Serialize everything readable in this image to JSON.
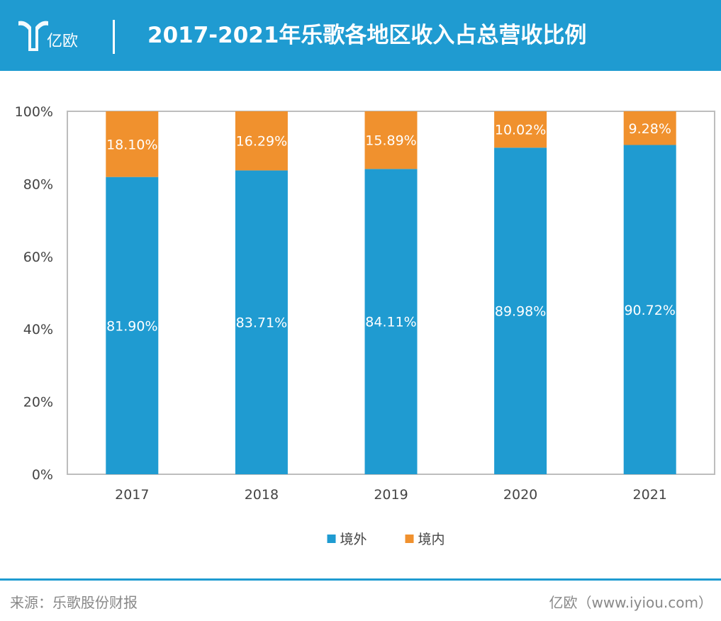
{
  "header": {
    "logo_text": "亿欧",
    "title": "2017-2021年乐歌各地区收入占总营收比例"
  },
  "colors": {
    "brand": "#1f9bd1",
    "overseas": "#1f9bd1",
    "domestic": "#f0912e"
  },
  "chart_data": {
    "type": "bar",
    "stacked": true,
    "title": "2017-2021年乐歌各地区收入占总营收比例",
    "categories": [
      "2017",
      "2018",
      "2019",
      "2020",
      "2021"
    ],
    "series": [
      {
        "name": "境外",
        "values": [
          81.9,
          83.71,
          84.11,
          89.98,
          90.72
        ],
        "labels": [
          "81.90%",
          "83.71%",
          "84.11%",
          "89.98%",
          "90.72%"
        ],
        "color": "#1f9bd1"
      },
      {
        "name": "境内",
        "values": [
          18.1,
          16.29,
          15.89,
          10.02,
          9.28
        ],
        "labels": [
          "18.10%",
          "16.29%",
          "15.89%",
          "10.02%",
          "9.28%"
        ],
        "color": "#f0912e"
      }
    ],
    "yticks": [
      "0%",
      "20%",
      "40%",
      "60%",
      "80%",
      "100%"
    ],
    "ylim": [
      0,
      100
    ],
    "xlabel": "",
    "ylabel": "",
    "legend": "bottom-center"
  },
  "footer": {
    "source": "来源：乐歌股份财报",
    "brand": "亿欧（www.iyiou.com）"
  }
}
